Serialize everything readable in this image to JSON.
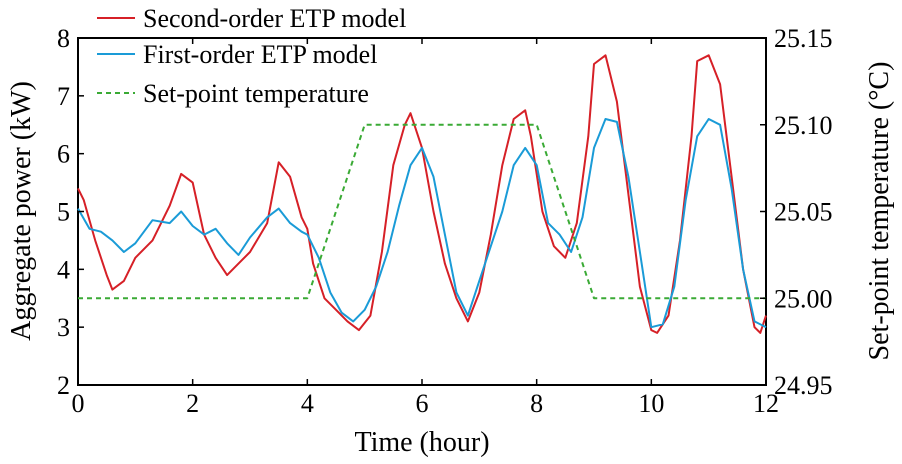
{
  "chart_data": {
    "type": "line",
    "xlabel": "Time (hour)",
    "ylabel_left": "Aggregate power (kW)",
    "ylabel_right": "Set-point temperature (°C)",
    "xlim": [
      0,
      12
    ],
    "ylim_left": [
      2,
      8
    ],
    "ylim_right": [
      24.95,
      25.15
    ],
    "x_ticks": [
      "0",
      "2",
      "4",
      "6",
      "8",
      "10",
      "12"
    ],
    "y_left_ticks": [
      "2",
      "3",
      "4",
      "5",
      "6",
      "7",
      "8"
    ],
    "y_right_ticks": [
      "24.95",
      "25.00",
      "25.05",
      "25.10",
      "25.15"
    ],
    "legend_position": "top-left",
    "grid": false,
    "series": [
      {
        "name": "Second-order ETP model",
        "color": "#d62027",
        "style": "solid",
        "axis": "left",
        "x": [
          0,
          0.1,
          0.3,
          0.5,
          0.6,
          0.8,
          1.0,
          1.3,
          1.6,
          1.8,
          2.0,
          2.2,
          2.4,
          2.6,
          2.8,
          3.0,
          3.3,
          3.5,
          3.7,
          3.9,
          4.0,
          4.1,
          4.3,
          4.5,
          4.7,
          4.9,
          5.1,
          5.3,
          5.5,
          5.7,
          5.8,
          6.0,
          6.2,
          6.4,
          6.6,
          6.8,
          7.0,
          7.2,
          7.4,
          7.6,
          7.8,
          7.9,
          8.1,
          8.3,
          8.5,
          8.7,
          8.9,
          9.0,
          9.2,
          9.4,
          9.6,
          9.8,
          10.0,
          10.1,
          10.3,
          10.5,
          10.7,
          10.8,
          11.0,
          11.2,
          11.4,
          11.6,
          11.8,
          11.9,
          12.0
        ],
        "y": [
          5.4,
          5.2,
          4.5,
          3.9,
          3.65,
          3.8,
          4.2,
          4.5,
          5.1,
          5.65,
          5.5,
          4.6,
          4.2,
          3.9,
          4.1,
          4.3,
          4.8,
          5.85,
          5.6,
          4.9,
          4.7,
          4.1,
          3.5,
          3.3,
          3.1,
          2.95,
          3.2,
          4.3,
          5.8,
          6.5,
          6.7,
          6.1,
          5.0,
          4.1,
          3.5,
          3.1,
          3.6,
          4.6,
          5.8,
          6.6,
          6.75,
          6.3,
          5.0,
          4.4,
          4.2,
          4.8,
          6.3,
          7.55,
          7.7,
          6.9,
          5.3,
          3.7,
          2.95,
          2.9,
          3.2,
          4.5,
          6.3,
          7.6,
          7.7,
          7.2,
          5.6,
          4.0,
          3.0,
          2.9,
          3.2
        ]
      },
      {
        "name": "First-order ETP model",
        "color": "#1a9bd7",
        "style": "solid",
        "axis": "left",
        "x": [
          0,
          0.2,
          0.4,
          0.6,
          0.8,
          1.0,
          1.3,
          1.6,
          1.8,
          2.0,
          2.2,
          2.4,
          2.6,
          2.8,
          3.0,
          3.3,
          3.5,
          3.7,
          3.9,
          4.0,
          4.2,
          4.4,
          4.6,
          4.8,
          5.0,
          5.2,
          5.4,
          5.6,
          5.8,
          6.0,
          6.2,
          6.4,
          6.6,
          6.8,
          7.0,
          7.2,
          7.4,
          7.6,
          7.8,
          8.0,
          8.2,
          8.4,
          8.6,
          8.8,
          9.0,
          9.2,
          9.4,
          9.6,
          9.8,
          10.0,
          10.2,
          10.4,
          10.6,
          10.8,
          11.0,
          11.2,
          11.4,
          11.6,
          11.8,
          12.0
        ],
        "y": [
          5.05,
          4.7,
          4.65,
          4.5,
          4.3,
          4.45,
          4.85,
          4.8,
          5.0,
          4.75,
          4.6,
          4.7,
          4.45,
          4.25,
          4.55,
          4.9,
          5.05,
          4.8,
          4.65,
          4.6,
          4.2,
          3.6,
          3.25,
          3.1,
          3.3,
          3.7,
          4.3,
          5.1,
          5.8,
          6.1,
          5.6,
          4.6,
          3.6,
          3.2,
          3.8,
          4.4,
          5.0,
          5.8,
          6.1,
          5.8,
          4.8,
          4.6,
          4.3,
          4.9,
          6.1,
          6.6,
          6.55,
          5.6,
          4.3,
          3.0,
          3.05,
          3.7,
          5.2,
          6.3,
          6.6,
          6.5,
          5.4,
          4.0,
          3.1,
          3.0
        ]
      },
      {
        "name": "Set-point temperature",
        "color": "#3aaa35",
        "style": "dashed",
        "axis": "right",
        "x": [
          0,
          4.0,
          5.0,
          8.0,
          9.0,
          12
        ],
        "y": [
          25.0,
          25.0,
          25.1,
          25.1,
          25.0,
          25.0
        ]
      }
    ]
  }
}
